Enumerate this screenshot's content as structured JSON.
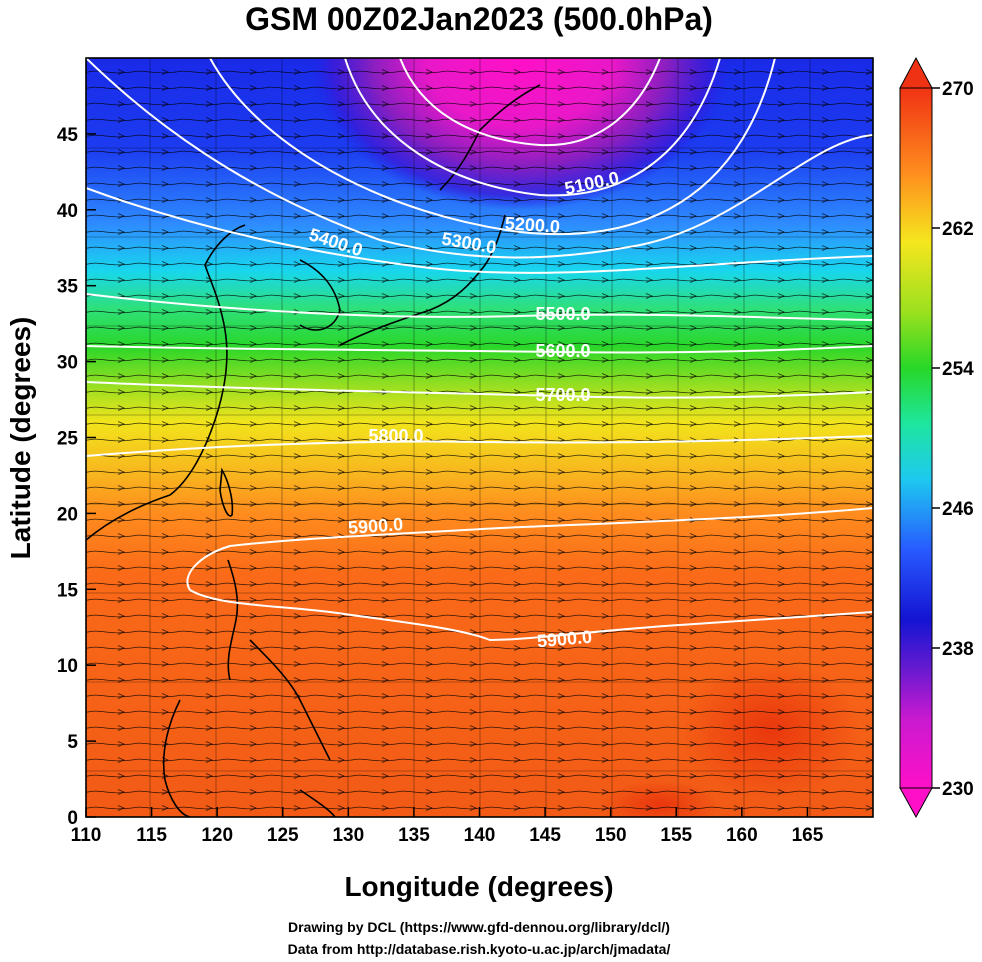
{
  "title": "GSM 00Z02Jan2023 (500.0hPa)",
  "credits": [
    "Drawing by DCL (https://www.gfd-dennou.org/library/dcl/)",
    "Data from http://database.rish.kyoto-u.ac.jp/arch/jmadata/"
  ],
  "axes": {
    "xlabel": "Longitude (degrees)",
    "ylabel": "Latitude  (degrees)",
    "xlim": [
      110,
      170
    ],
    "ylim": [
      0,
      50
    ],
    "xticks": [
      "110",
      "115",
      "120",
      "125",
      "130",
      "135",
      "140",
      "145",
      "150",
      "155",
      "160",
      "165"
    ],
    "yticks": [
      "0",
      "5",
      "10",
      "15",
      "20",
      "25",
      "30",
      "35",
      "40",
      "45"
    ]
  },
  "colorbar": {
    "labels": [
      "230",
      "238",
      "246",
      "254",
      "262",
      "270"
    ],
    "min": 230,
    "max": 270
  },
  "contour_labels": [
    {
      "text": "5100.0"
    },
    {
      "text": "5200.0"
    },
    {
      "text": "5300.0"
    },
    {
      "text": "5400.0"
    },
    {
      "text": "5500.0"
    },
    {
      "text": "5600.0"
    },
    {
      "text": "5700.0"
    },
    {
      "text": "5800.0"
    },
    {
      "text": "5900.0"
    },
    {
      "text": "5900.0"
    }
  ],
  "colors": {
    "magenta": "#ff10c8",
    "purple": "#8a1fc0",
    "navy": "#1e1ee6",
    "blue": "#2864ff",
    "cyan": "#14d2f0",
    "green": "#28d728",
    "yellow": "#f5e61e",
    "orange": "#ff8c1e",
    "red": "#f03214"
  }
}
